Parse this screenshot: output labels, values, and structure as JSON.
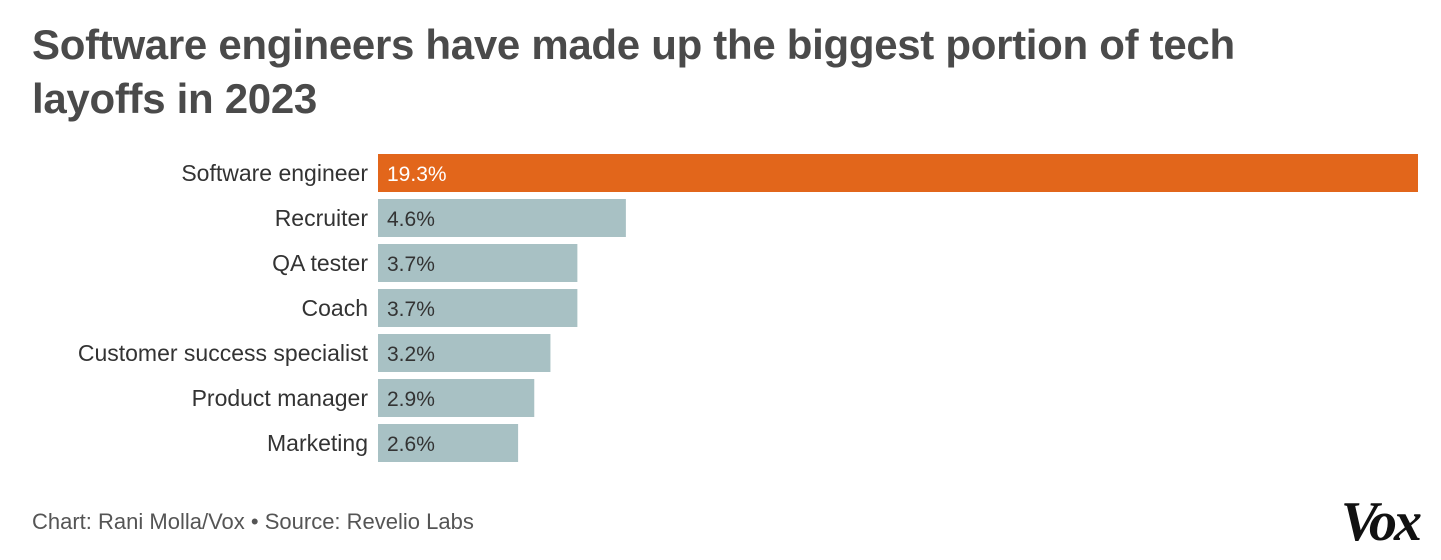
{
  "title": "Software engineers have made up the biggest portion of tech layoffs in 2023",
  "footer": {
    "credit": "Chart: Rani Molla/Vox",
    "separator": "•",
    "source": "Source: Revelio Labs"
  },
  "logo": {
    "text": "Vox"
  },
  "colors": {
    "highlight": "#e2661b",
    "bar": "#a8c1c4",
    "highlight_label": "#ffffff",
    "bar_label": "#333333"
  },
  "chart_data": {
    "type": "bar",
    "orientation": "horizontal",
    "title": "Software engineers have made up the biggest portion of tech layoffs in 2023",
    "categories": [
      "Software engineer",
      "Recruiter",
      "QA tester",
      "Coach",
      "Customer success specialist",
      "Product manager",
      "Marketing"
    ],
    "values": [
      19.3,
      4.6,
      3.7,
      3.7,
      3.2,
      2.9,
      2.6
    ],
    "value_labels": [
      "19.3%",
      "4.6%",
      "3.7%",
      "3.7%",
      "3.2%",
      "2.9%",
      "2.6%"
    ],
    "highlighted": [
      "Software engineer"
    ],
    "xlim": [
      0,
      19.3
    ],
    "grid": false,
    "legend": "none"
  }
}
